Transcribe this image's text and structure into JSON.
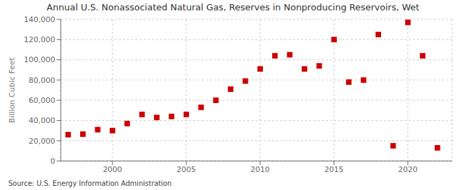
{
  "chart_data": {
    "type": "scatter",
    "title": "Annual U.S. Nonassociated Natural Gas, Reserves in Nonproducing Reservoirs, Wet",
    "ylabel": "Billion Cubic Feet",
    "annotations": [
      "Source: U.S. Energy Information Administration"
    ],
    "x": [
      1997,
      1998,
      1999,
      2000,
      2001,
      2002,
      2003,
      2004,
      2005,
      2006,
      2007,
      2008,
      2009,
      2010,
      2011,
      2012,
      2013,
      2014,
      2015,
      2016,
      2017,
      2018,
      2019,
      2020,
      2021,
      2022
    ],
    "values": [
      26000,
      26500,
      31000,
      30000,
      37000,
      46000,
      43000,
      44000,
      46000,
      53000,
      60000,
      71000,
      79000,
      91000,
      104000,
      105000,
      91000,
      94000,
      120000,
      78000,
      80000,
      125000,
      15000,
      137000,
      104000,
      13000
    ],
    "color": "#cc0000",
    "marker": "square",
    "xlim": [
      1996.5,
      2023.0
    ],
    "xticks": [
      2000,
      2005,
      2010,
      2015,
      2020
    ],
    "ylim": [
      0,
      140000
    ],
    "yticks": [
      0,
      {
        "value": 20000,
        "label": "20,000"
      },
      {
        "value": 40000,
        "label": "40,000"
      },
      {
        "value": 60000,
        "label": "60,000"
      },
      {
        "value": 80000,
        "label": "80,000"
      },
      {
        "value": 100000,
        "label": "100,000"
      },
      {
        "value": 120000,
        "label": "120,000"
      },
      {
        "value": 140000,
        "label": "140,000"
      }
    ],
    "grid": true
  }
}
